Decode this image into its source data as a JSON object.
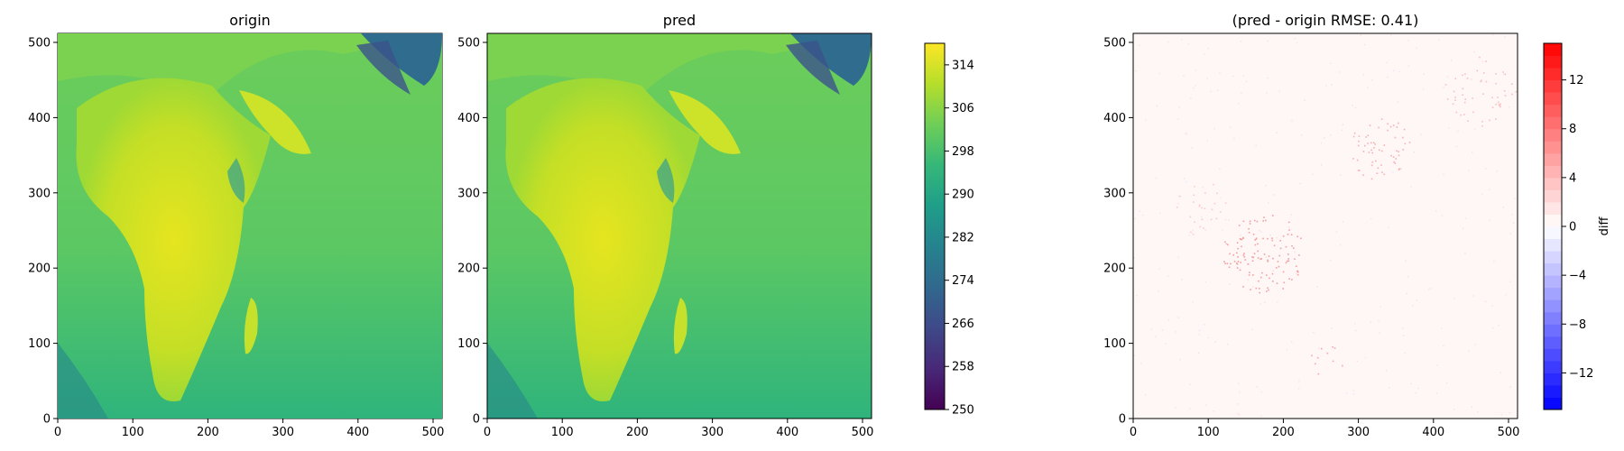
{
  "chart_data": [
    {
      "type": "heatmap",
      "title": "origin",
      "xlim": [
        0,
        512
      ],
      "ylim": [
        0,
        512
      ],
      "x_ticks": [
        0,
        100,
        200,
        300,
        400,
        500
      ],
      "y_ticks": [
        0,
        100,
        200,
        300,
        400,
        500
      ],
      "colormap": "viridis",
      "value_range": [
        250,
        318
      ]
    },
    {
      "type": "heatmap",
      "title": "pred",
      "xlim": [
        0,
        512
      ],
      "ylim": [
        0,
        512
      ],
      "x_ticks": [
        0,
        100,
        200,
        300,
        400,
        500
      ],
      "y_ticks": [
        0,
        100,
        200,
        300,
        400,
        500
      ],
      "colormap": "viridis",
      "value_range": [
        250,
        318
      ],
      "colorbar": {
        "ticks": [
          250,
          258,
          266,
          274,
          282,
          290,
          298,
          306,
          314
        ],
        "range": [
          250,
          318
        ]
      }
    },
    {
      "type": "heatmap",
      "title": "(pred - origin RMSE: 0.41)",
      "xlim": [
        0,
        512
      ],
      "ylim": [
        0,
        512
      ],
      "x_ticks": [
        0,
        100,
        200,
        300,
        400,
        500
      ],
      "y_ticks": [
        0,
        100,
        200,
        300,
        400,
        500
      ],
      "colormap": "bwr",
      "value_range": [
        -15,
        15
      ],
      "colorbar": {
        "label": "diff",
        "ticks": [
          -12,
          -8,
          -4,
          0,
          4,
          8,
          12
        ],
        "tick_labels": [
          "−12",
          "−8",
          "−4",
          "0",
          "4",
          "8",
          "12"
        ],
        "range": [
          -15,
          15
        ],
        "levels": 30
      }
    }
  ],
  "colors": {
    "viridis": [
      "#440154",
      "#482878",
      "#3e4989",
      "#31688e",
      "#26828e",
      "#1f9e89",
      "#35b779",
      "#6ece58",
      "#b5de2b",
      "#fde725"
    ],
    "diff_low": "#0000ff",
    "diff_mid": "#ffffff",
    "diff_high": "#ff0000"
  }
}
